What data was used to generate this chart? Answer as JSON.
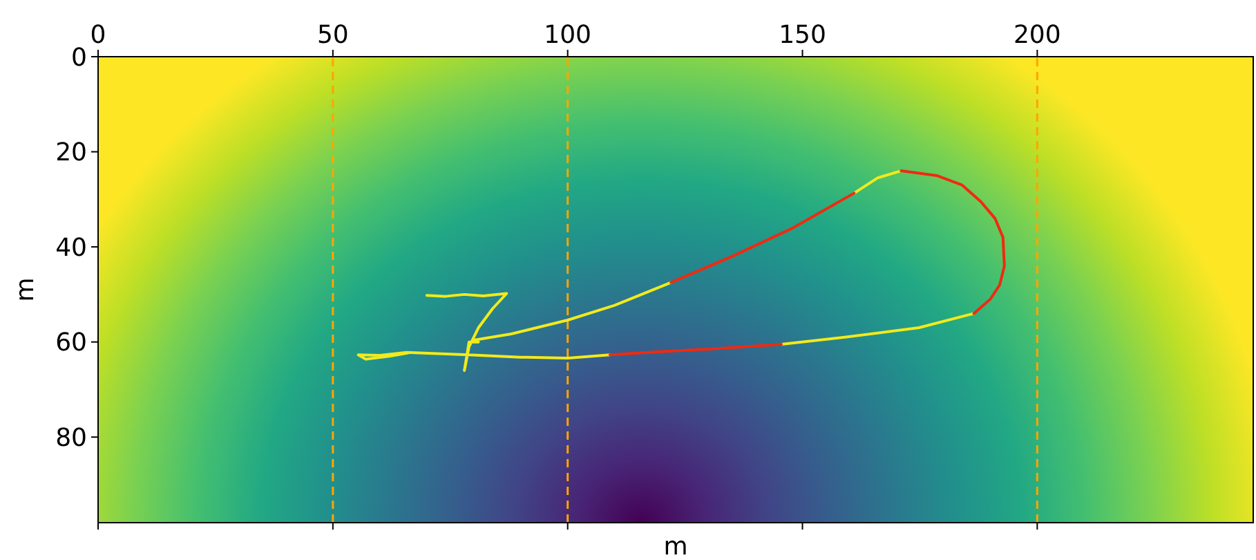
{
  "chart_data": {
    "type": "line",
    "xlabel": "m",
    "ylabel": "m",
    "xlim": [
      0,
      246
    ],
    "ylim": [
      98,
      0
    ],
    "xticks": [
      0,
      50,
      100,
      150,
      200
    ],
    "yticks": [
      0,
      20,
      40,
      60,
      80
    ],
    "line_style": "solid",
    "series": [
      {
        "color": "#f2ea1c",
        "x": [
          70,
          74,
          78,
          82,
          87,
          84,
          81,
          79,
          78,
          79,
          81,
          80,
          88,
          100,
          110,
          122,
          null,
          161,
          166,
          171,
          null,
          186.5,
          174.8,
          159,
          145.5,
          null,
          109,
          100,
          90,
          79,
          65.7,
          60,
          55.4,
          57,
          62,
          66
        ],
        "values": [
          50.2,
          50.4,
          50,
          50.3,
          49.8,
          53,
          57,
          61,
          66,
          60,
          60,
          59.6,
          58.3,
          55.4,
          52.3,
          47.5,
          null,
          28.7,
          25.5,
          24,
          null,
          54,
          57,
          59,
          60.5,
          null,
          62.7,
          63.4,
          63.2,
          62.7,
          62.2,
          62.8,
          62.7,
          63.6,
          63,
          62.3
        ]
      },
      {
        "color": "#f02a10",
        "x": [
          122,
          135,
          148,
          161,
          null,
          171,
          178.6,
          184,
          188,
          191,
          192.7,
          193,
          192,
          190,
          186.5,
          null,
          145.5,
          130,
          120,
          109
        ],
        "values": [
          47.5,
          42,
          36,
          28.7,
          null,
          24,
          25,
          27,
          30.5,
          34,
          38,
          44,
          48,
          51,
          54,
          null,
          60.5,
          61.5,
          62,
          62.7
        ]
      }
    ],
    "ref_lines": [
      {
        "axis": "x",
        "value": 50,
        "color": "#ffa500",
        "line_style": "dashed"
      },
      {
        "axis": "x",
        "value": 100,
        "color": "#ffa500",
        "line_style": "dashed"
      },
      {
        "axis": "x",
        "value": 200,
        "color": "#ffa500",
        "line_style": "dashed"
      }
    ]
  }
}
